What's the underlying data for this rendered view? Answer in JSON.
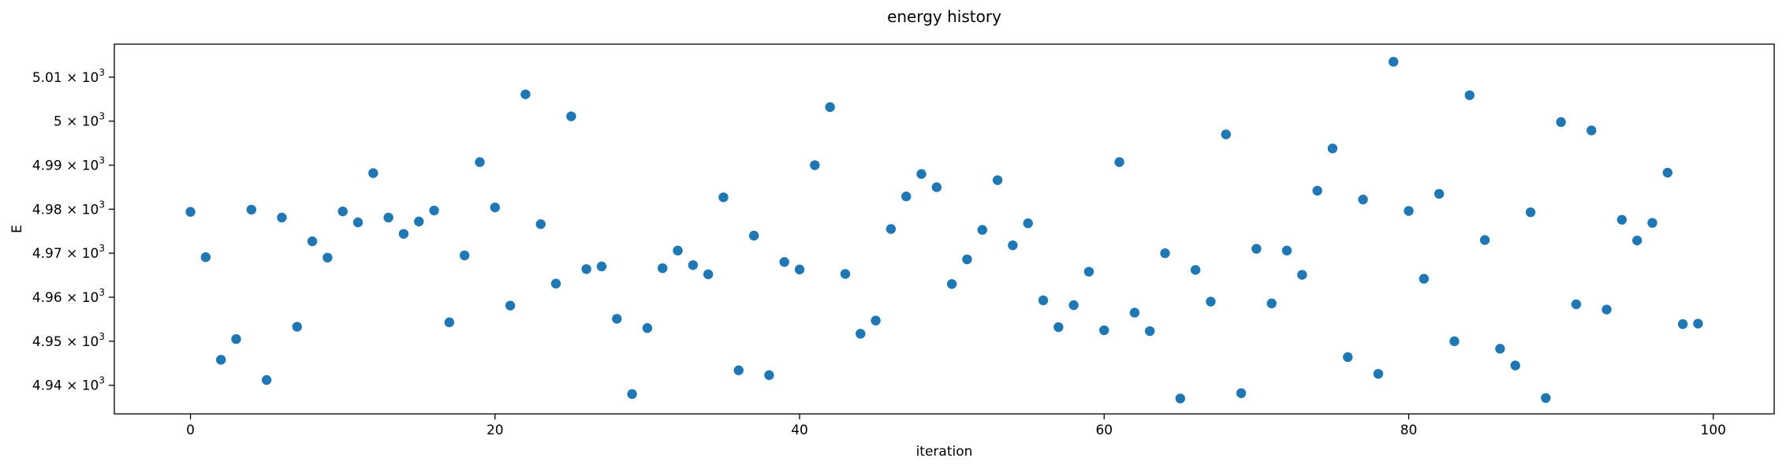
{
  "chart_data": {
    "type": "scatter",
    "title": "energy history",
    "xlabel": "iteration",
    "ylabel": "E",
    "xlim": [
      -5,
      104
    ],
    "ylim": [
      4933.5,
      5017.5
    ],
    "x_ticks": [
      {
        "value": 0,
        "label": "0"
      },
      {
        "value": 20,
        "label": "20"
      },
      {
        "value": 40,
        "label": "40"
      },
      {
        "value": 60,
        "label": "60"
      },
      {
        "value": 80,
        "label": "80"
      },
      {
        "value": 100,
        "label": "100"
      }
    ],
    "y_ticks": [
      {
        "value": 4940,
        "mantissa": "4.94",
        "times": " × 10",
        "exponent": "3"
      },
      {
        "value": 4950,
        "mantissa": "4.95",
        "times": " × 10",
        "exponent": "3"
      },
      {
        "value": 4960,
        "mantissa": "4.96",
        "times": " × 10",
        "exponent": "3"
      },
      {
        "value": 4970,
        "mantissa": "4.97",
        "times": " × 10",
        "exponent": "3"
      },
      {
        "value": 4980,
        "mantissa": "4.98",
        "times": " × 10",
        "exponent": "3"
      },
      {
        "value": 4990,
        "mantissa": "4.99",
        "times": " × 10",
        "exponent": "3"
      },
      {
        "value": 5000,
        "mantissa": "5",
        "times": " × 10",
        "exponent": "3"
      },
      {
        "value": 5010,
        "mantissa": "5.01",
        "times": " × 10",
        "exponent": "3"
      }
    ],
    "color": "#1f77b4",
    "x": [
      0,
      1,
      2,
      3,
      4,
      5,
      6,
      7,
      8,
      9,
      10,
      11,
      12,
      13,
      14,
      15,
      16,
      17,
      18,
      19,
      20,
      21,
      22,
      23,
      24,
      25,
      26,
      27,
      28,
      29,
      30,
      31,
      32,
      33,
      34,
      35,
      36,
      37,
      38,
      39,
      40,
      41,
      42,
      43,
      44,
      45,
      46,
      47,
      48,
      49,
      50,
      51,
      52,
      53,
      54,
      55,
      56,
      57,
      58,
      59,
      60,
      61,
      62,
      63,
      64,
      65,
      66,
      67,
      68,
      69,
      70,
      71,
      72,
      73,
      74,
      75,
      76,
      77,
      78,
      79,
      80,
      81,
      82,
      83,
      84,
      85,
      86,
      87,
      88,
      89,
      90,
      91,
      92,
      93,
      94,
      95,
      96,
      97,
      98,
      99
    ],
    "y": [
      4979.4,
      4969.1,
      4945.8,
      4950.5,
      4979.9,
      4941.2,
      4978.1,
      4953.3,
      4972.7,
      4969.0,
      4979.5,
      4977.0,
      4988.2,
      4978.1,
      4974.4,
      4977.2,
      4979.7,
      4954.3,
      4969.5,
      4990.7,
      4980.4,
      4958.1,
      5006.1,
      4976.6,
      4963.1,
      5001.1,
      4966.4,
      4967.0,
      4955.1,
      4938.0,
      4953.0,
      4966.6,
      4970.6,
      4967.3,
      4965.2,
      4982.7,
      4943.4,
      4974.0,
      4942.3,
      4968.0,
      4966.3,
      4990.0,
      5003.2,
      4965.3,
      4951.7,
      4954.7,
      4975.5,
      4982.9,
      4988.0,
      4985.0,
      4963.0,
      4968.6,
      4975.3,
      4986.6,
      4971.8,
      4976.8,
      4959.3,
      4953.2,
      4958.2,
      4965.8,
      4952.5,
      4990.7,
      4956.5,
      4952.3,
      4970.0,
      4937.0,
      4966.2,
      4959.0,
      4997.0,
      4938.2,
      4971.0,
      4958.6,
      4970.6,
      4965.1,
      4984.2,
      4993.8,
      4946.4,
      4982.2,
      4942.6,
      5013.5,
      4979.6,
      4964.2,
      4983.5,
      4950.0,
      5005.9,
      4973.0,
      4948.3,
      4944.5,
      4979.3,
      4937.1,
      4999.8,
      4958.4,
      4997.9,
      4957.2,
      4977.6,
      4972.9,
      4976.9,
      4988.3,
      4953.9,
      4954.0
    ]
  }
}
